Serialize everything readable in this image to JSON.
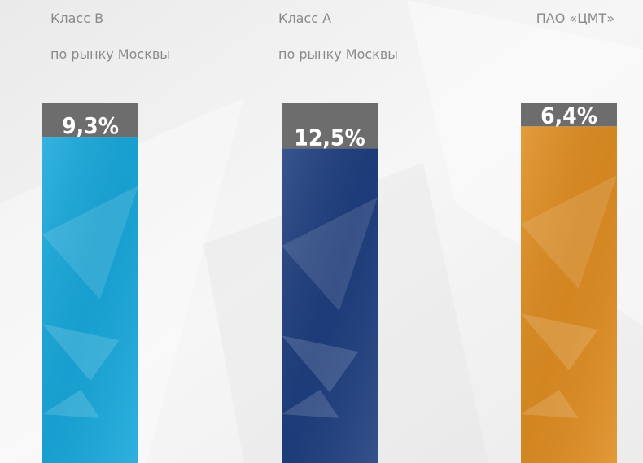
{
  "chart_data": {
    "type": "bar",
    "categories": [
      "Класс B",
      "Класс А",
      "ПАО «ЦМТ»"
    ],
    "category_notes": [
      "по рынку Москвы",
      "по рынку Москвы",
      null
    ],
    "values": [
      9.3,
      12.5,
      6.4
    ],
    "value_labels": [
      "9,3%",
      "12,5%",
      "6,4%"
    ],
    "colors": [
      "#19a9dc",
      "#1f3f80",
      "#e08e22"
    ],
    "vacant_color": "#6d6d6d",
    "ylim": [
      0,
      100
    ]
  }
}
